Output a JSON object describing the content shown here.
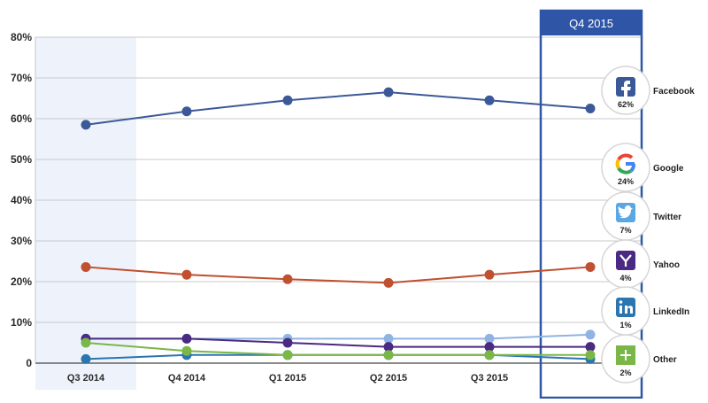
{
  "chart_data": {
    "type": "line",
    "categories": [
      "Q3 2014",
      "Q4 2014",
      "Q1 2015",
      "Q2 2015",
      "Q3 2015",
      "Q4 2015"
    ],
    "highlight_label": "Q4 2015",
    "y_ticks": [
      "0",
      "10%",
      "20%",
      "30%",
      "40%",
      "50%",
      "60%",
      "70%",
      "80%"
    ],
    "ylim": [
      0,
      80
    ],
    "grid": true,
    "legend_position": "right",
    "series": [
      {
        "name": "Facebook",
        "values": [
          58.5,
          61.8,
          64.5,
          66.5,
          64.5,
          62.5
        ],
        "color": "#3b5998",
        "icon": "facebook-icon",
        "badge": "62%"
      },
      {
        "name": "Google",
        "values": [
          23.6,
          21.7,
          20.6,
          19.7,
          21.7,
          23.6
        ],
        "color": "#c0502f",
        "icon": "google-icon",
        "badge": "24%"
      },
      {
        "name": "Twitter",
        "values": [
          6.0,
          6.0,
          6.0,
          6.0,
          6.0,
          7.0
        ],
        "color": "#8fb4e3",
        "icon": "twitter-icon",
        "badge": "7%"
      },
      {
        "name": "Yahoo",
        "values": [
          6.0,
          6.0,
          5.0,
          4.0,
          4.0,
          4.0
        ],
        "color": "#4a2a82",
        "icon": "yahoo-icon",
        "badge": "4%"
      },
      {
        "name": "LinkedIn",
        "values": [
          1.0,
          2.0,
          2.0,
          2.0,
          2.0,
          1.0
        ],
        "color": "#2a76b0",
        "icon": "linkedin-icon",
        "badge": "1%"
      },
      {
        "name": "Other",
        "values": [
          5.0,
          3.0,
          2.0,
          2.0,
          2.0,
          2.0
        ],
        "color": "#7ab648",
        "icon": "plus-icon",
        "badge": "2%"
      }
    ]
  }
}
